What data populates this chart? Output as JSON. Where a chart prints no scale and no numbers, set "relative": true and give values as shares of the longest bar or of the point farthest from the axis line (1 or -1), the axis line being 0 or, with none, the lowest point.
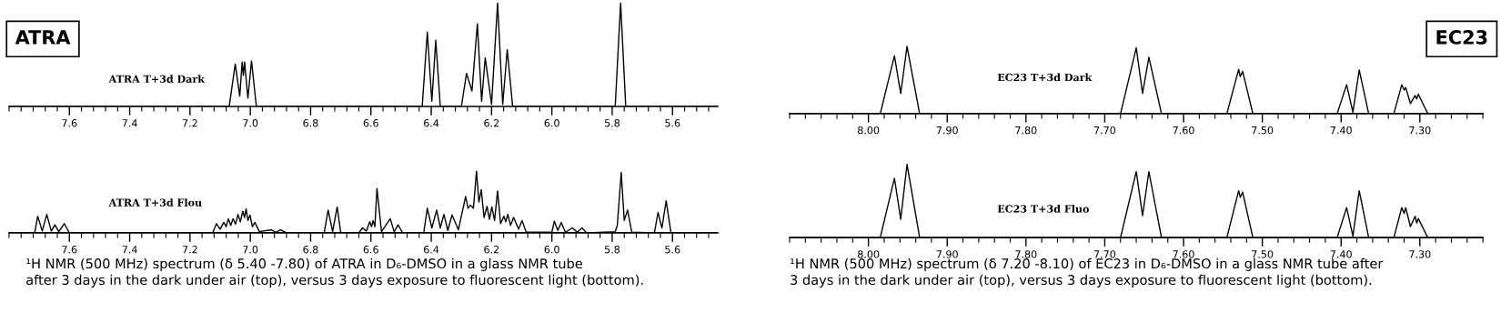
{
  "chart_data": [
    {
      "type": "line",
      "title": "ATRA",
      "relative": true,
      "xlim": [
        7.8,
        5.45
      ],
      "xticks": [
        7.6,
        7.4,
        7.2,
        {
          "value": 7.0,
          "label": "7.0"
        },
        6.8,
        6.6,
        6.4,
        6.2,
        {
          "value": 6.0,
          "label": "6.0"
        },
        5.8,
        5.6
      ],
      "tick_labels": "x",
      "annotations": [
        "ATRA T+3d Dark"
      ],
      "series": [
        {
          "color": "#000000",
          "x": [
            7.8,
            7.07,
            7.05,
            7.035,
            7.027,
            7.023,
            7.019,
            7.008,
            6.996,
            6.98,
            6.43,
            6.413,
            6.398,
            6.385,
            6.37,
            6.3,
            6.283,
            6.265,
            6.247,
            6.233,
            6.221,
            6.2,
            6.18,
            6.163,
            6.148,
            6.13,
            5.79,
            5.772,
            5.755,
            5.45
          ],
          "values": [
            0,
            0,
            0.41,
            0.1,
            0.43,
            0.3,
            0.43,
            0.08,
            0.44,
            0,
            0,
            0.72,
            0.05,
            0.64,
            0,
            0,
            0.32,
            0.15,
            0.8,
            0.05,
            0.47,
            0.02,
            1.0,
            0.02,
            0.55,
            0,
            0,
            1.0,
            0,
            0
          ]
        }
      ]
    },
    {
      "type": "line",
      "relative": true,
      "xlim": [
        7.8,
        5.45
      ],
      "xticks": [
        7.6,
        7.4,
        7.2,
        {
          "value": 7.0,
          "label": "7.0"
        },
        6.8,
        6.6,
        6.4,
        6.2,
        {
          "value": 6.0,
          "label": "6.0"
        },
        5.8,
        5.6
      ],
      "tick_labels": "x",
      "annotations": [
        "ATRA T+3d Flou",
        "¹H NMR (500 MHz) spectrum (δ 5.40 -7.80) of ATRA in D₆-DMSO in a glass NMR tube\nafter 3 days in the dark under air (top), versus 3 days exposure to fluorescent light (bottom)."
      ],
      "series": [
        {
          "color": "#000000",
          "x": [
            7.8,
            7.715,
            7.705,
            7.69,
            7.675,
            7.66,
            7.648,
            7.635,
            7.617,
            7.6,
            7.125,
            7.112,
            7.1,
            7.088,
            7.08,
            7.073,
            7.065,
            7.057,
            7.049,
            7.041,
            7.033,
            7.025,
            7.019,
            7.014,
            7.008,
            7.001,
            6.993,
            6.985,
            6.97,
            6.93,
            6.915,
            6.9,
            6.88,
            6.755,
            6.742,
            6.727,
            6.712,
            6.7,
            6.64,
            6.628,
            6.615,
            6.604,
            6.598,
            6.593,
            6.587,
            6.58,
            6.565,
            6.536,
            6.523,
            6.51,
            6.495,
            6.425,
            6.413,
            6.398,
            6.382,
            6.37,
            6.358,
            6.345,
            6.331,
            6.31,
            6.286,
            6.278,
            6.27,
            6.26,
            6.25,
            6.242,
            6.234,
            6.225,
            6.215,
            6.207,
            6.199,
            6.19,
            6.18,
            6.17,
            6.159,
            6.153,
            6.146,
            6.137,
            6.127,
            6.11,
            6.099,
            6.085,
            6.0,
            5.992,
            5.98,
            5.969,
            5.955,
            5.932,
            5.916,
            5.9,
            5.885,
            5.79,
            5.783,
            5.77,
            5.76,
            5.749,
            5.735,
            5.66,
            5.648,
            5.635,
            5.621,
            5.605,
            5.45
          ],
          "values": [
            0,
            0,
            0.27,
            0.03,
            0.3,
            0.03,
            0.13,
            0.02,
            0.15,
            0,
            0,
            0.15,
            0.06,
            0.17,
            0.1,
            0.23,
            0.12,
            0.23,
            0.14,
            0.3,
            0.18,
            0.35,
            0.25,
            0.39,
            0.2,
            0.29,
            0.1,
            0.17,
            0.02,
            0.05,
            0.01,
            0.05,
            0,
            0,
            0.37,
            0.02,
            0.42,
            0,
            0,
            0.08,
            0.03,
            0.18,
            0.1,
            0.2,
            0.1,
            0.72,
            0.02,
            0.23,
            0.02,
            0.13,
            0,
            0,
            0.4,
            0.08,
            0.37,
            0.08,
            0.3,
            0.04,
            0.29,
            0.05,
            0.59,
            0.4,
            0.45,
            0.4,
            1.0,
            0.5,
            0.7,
            0.25,
            0.43,
            0.22,
            0.42,
            0.2,
            0.68,
            0.15,
            0.27,
            0.18,
            0.3,
            0.12,
            0.25,
            0.06,
            0.2,
            0.01,
            0.01,
            0.19,
            0.04,
            0.17,
            0.01,
            0.08,
            0.01,
            0.08,
            0,
            0.02,
            0.12,
            0.98,
            0.2,
            0.37,
            0.01,
            0,
            0.33,
            0.08,
            0.52,
            0,
            0
          ]
        }
      ]
    },
    {
      "type": "line",
      "title": "EC23",
      "relative": true,
      "xlim": [
        8.1,
        7.22
      ],
      "xticks": [
        {
          "value": 8.0,
          "label": "8.00"
        },
        {
          "value": 7.9,
          "label": "7.90"
        },
        {
          "value": 7.8,
          "label": "7.80"
        },
        {
          "value": 7.7,
          "label": "7.70"
        },
        {
          "value": 7.6,
          "label": "7.60"
        },
        {
          "value": 7.5,
          "label": "7.50"
        },
        {
          "value": 7.4,
          "label": "7.40"
        },
        {
          "value": 7.3,
          "label": "7.30"
        }
      ],
      "tick_labels": "x",
      "annotations": [
        "EC23 T+3d Dark"
      ],
      "series": [
        {
          "color": "#000000",
          "x": [
            8.1,
            7.985,
            7.967,
            7.959,
            7.951,
            7.935,
            7.68,
            7.66,
            7.652,
            7.644,
            7.628,
            7.545,
            7.53,
            7.528,
            7.525,
            7.512,
            7.405,
            7.393,
            7.385,
            7.377,
            7.365,
            7.333,
            7.323,
            7.32,
            7.318,
            7.312,
            7.306,
            7.304,
            7.302,
            7.29,
            7.22
          ],
          "values": [
            0,
            0,
            0.86,
            0.3,
            1.0,
            0,
            0,
            0.98,
            0.3,
            0.84,
            0,
            0,
            0.66,
            0.55,
            0.63,
            0,
            0,
            0.43,
            0.02,
            0.65,
            0,
            0,
            0.43,
            0.35,
            0.39,
            0.15,
            0.27,
            0.22,
            0.29,
            0,
            0
          ]
        }
      ]
    },
    {
      "type": "line",
      "relative": true,
      "xlim": [
        8.1,
        7.22
      ],
      "xticks": [
        {
          "value": 8.0,
          "label": "8.00"
        },
        {
          "value": 7.9,
          "label": "7.90"
        },
        {
          "value": 7.8,
          "label": "7.80"
        },
        {
          "value": 7.7,
          "label": "7.70"
        },
        {
          "value": 7.6,
          "label": "7.60"
        },
        {
          "value": 7.5,
          "label": "7.50"
        },
        {
          "value": 7.4,
          "label": "7.40"
        },
        {
          "value": 7.3,
          "label": "7.30"
        }
      ],
      "tick_labels": "x",
      "annotations": [
        "EC23 T+3d Fluo",
        "¹H NMR (500 MHz) spectrum (δ 7.20 -8.10) of EC23 in D₆-DMSO in a glass NMR tube after\n3 days in the dark under air (top), versus 3 days exposure to fluorescent light (bottom)."
      ],
      "series": [
        {
          "color": "#000000",
          "x": [
            8.1,
            7.985,
            7.967,
            7.959,
            7.951,
            7.935,
            7.68,
            7.66,
            7.652,
            7.644,
            7.628,
            7.545,
            7.53,
            7.528,
            7.525,
            7.512,
            7.405,
            7.393,
            7.385,
            7.377,
            7.365,
            7.333,
            7.323,
            7.32,
            7.318,
            7.312,
            7.306,
            7.304,
            7.302,
            7.29,
            7.22
          ],
          "values": [
            0,
            0,
            0.81,
            0.25,
            1.0,
            0,
            0,
            0.9,
            0.3,
            0.9,
            0,
            0,
            0.64,
            0.55,
            0.62,
            0,
            0,
            0.41,
            0.02,
            0.64,
            0,
            0,
            0.41,
            0.33,
            0.41,
            0.15,
            0.29,
            0.2,
            0.26,
            0,
            0
          ]
        }
      ]
    }
  ]
}
